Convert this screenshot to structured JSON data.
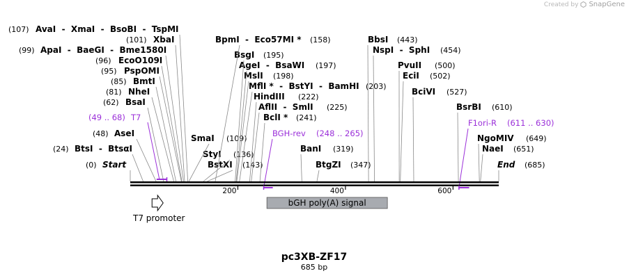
{
  "watermark": {
    "created_by": "Created by",
    "brand": "SnapGene"
  },
  "map": {
    "title": "pc3XB-ZF17",
    "length_label": "685 bp",
    "length_bp": 685
  },
  "sites": [
    {
      "name": "Start",
      "pos_label": "(0)",
      "bp": 0,
      "italic": true
    },
    {
      "name": "End",
      "pos_label": "(685)",
      "bp": 685,
      "italic": true
    },
    {
      "name": "BtsI  -  BtsαI",
      "pos_label": "(24)",
      "bp": 24
    },
    {
      "name": "AseI",
      "pos_label": "(48)",
      "bp": 48
    },
    {
      "name": "BsaI",
      "pos_label": "(62)",
      "bp": 62
    },
    {
      "name": "NheI",
      "pos_label": "(81)",
      "bp": 81
    },
    {
      "name": "BmtI",
      "pos_label": "(85)",
      "bp": 85
    },
    {
      "name": "PspOMI",
      "pos_label": "(95)",
      "bp": 95
    },
    {
      "name": "EcoO109I",
      "pos_label": "(96)",
      "bp": 96
    },
    {
      "name": "ApaI  -  BaeGI  -  Bme1580I",
      "pos_label": "(99)",
      "bp": 99
    },
    {
      "name": "XbaI",
      "pos_label": "(101)",
      "bp": 101
    },
    {
      "name": "AvaI  -  XmaI  -  BsoBI  -  TspMI",
      "pos_label": "(107)",
      "bp": 107
    },
    {
      "name": "SmaI",
      "pos_label": "(109)",
      "bp": 109
    },
    {
      "name": "StyI",
      "pos_label": "(136)",
      "bp": 136
    },
    {
      "name": "BstXI",
      "pos_label": "(143)",
      "bp": 143
    },
    {
      "name": "BpmI  -  Eco57MI *",
      "pos_label": "(158)",
      "bp": 158
    },
    {
      "name": "BsgI",
      "pos_label": "(195)",
      "bp": 195
    },
    {
      "name": "AgeI  -  BsaWI",
      "pos_label": "(197)",
      "bp": 197
    },
    {
      "name": "MslI",
      "pos_label": "(198)",
      "bp": 198
    },
    {
      "name": "MflI *  -  BstYI  -  BamHI",
      "pos_label": "(203)",
      "bp": 203
    },
    {
      "name": "HindIII",
      "pos_label": "(222)",
      "bp": 222
    },
    {
      "name": "AflII  -  SmlI",
      "pos_label": "(225)",
      "bp": 225
    },
    {
      "name": "BclI *",
      "pos_label": "(241)",
      "bp": 241
    },
    {
      "name": "BanI",
      "pos_label": "(319)",
      "bp": 319
    },
    {
      "name": "BtgZI",
      "pos_label": "(347)",
      "bp": 347
    },
    {
      "name": "BbsI",
      "pos_label": "(443)",
      "bp": 443
    },
    {
      "name": "NspI  -  SphI",
      "pos_label": "(454)",
      "bp": 454
    },
    {
      "name": "PvuII",
      "pos_label": "(500)",
      "bp": 500
    },
    {
      "name": "EciI",
      "pos_label": "(502)",
      "bp": 502
    },
    {
      "name": "BciVI",
      "pos_label": "(527)",
      "bp": 527
    },
    {
      "name": "BsrBI",
      "pos_label": "(610)",
      "bp": 610
    },
    {
      "name": "NgoMIV",
      "pos_label": "(649)",
      "bp": 649
    },
    {
      "name": "NaeI",
      "pos_label": "(651)",
      "bp": 651
    }
  ],
  "primers": [
    {
      "name": "T7",
      "range_label": "(49 .. 68)",
      "start": 49,
      "end": 68
    },
    {
      "name": "BGH-rev",
      "range_label": "(248 .. 265)",
      "start": 248,
      "end": 265
    },
    {
      "name": "F1ori-R",
      "range_label": "(611 .. 630)",
      "start": 611,
      "end": 630
    }
  ],
  "ticks": [
    {
      "label": "200",
      "bp": 200
    },
    {
      "label": "400",
      "bp": 400
    },
    {
      "label": "600",
      "bp": 600
    }
  ],
  "features": [
    {
      "name": "T7 promoter",
      "type": "promoter",
      "start": 47,
      "end": 65
    },
    {
      "name": "bGH poly(A) signal",
      "type": "polyA",
      "start": 254,
      "end": 478
    }
  ],
  "colors": {
    "primer": "#9b30d9",
    "backbone": "#000000",
    "feature_fill": "#a8abb0",
    "leader": "#888888"
  }
}
